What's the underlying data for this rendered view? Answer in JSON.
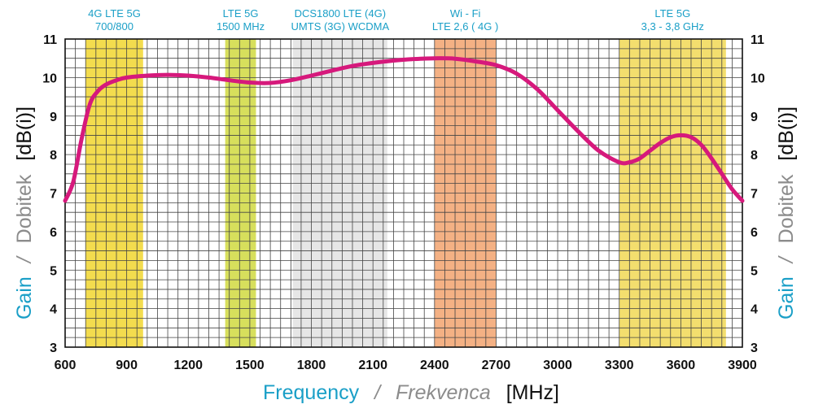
{
  "chart_data": {
    "type": "line",
    "x_axis": {
      "range": [
        600,
        3900
      ],
      "ticks": [
        600,
        900,
        1200,
        1500,
        1800,
        2100,
        2400,
        2700,
        3000,
        3300,
        3600,
        3900
      ],
      "title_main": "Frequency",
      "title_sep": "/",
      "title_alt": "Frekvenca",
      "unit": "[MHz]"
    },
    "y_axis": {
      "range": [
        3,
        11
      ],
      "ticks": [
        3,
        4,
        5,
        6,
        7,
        8,
        9,
        10,
        11
      ],
      "title_main": "Gain",
      "title_sep": "/",
      "title_alt": "Dobitek",
      "unit": "[dB(i)]"
    },
    "grid": true,
    "bands": [
      {
        "from": 700,
        "to": 980,
        "color": "#f3dc4e",
        "label_lines": [
          "4G LTE 5G",
          "700/800"
        ]
      },
      {
        "from": 1380,
        "to": 1530,
        "color": "#d7df5c",
        "label_lines": [
          "LTE 5G",
          "1500 MHz"
        ]
      },
      {
        "from": 1710,
        "to": 2170,
        "color": "#e6e6e6",
        "label_lines": [
          "DCS1800 LTE (4G)",
          "UMTS (3G) WCDMA"
        ]
      },
      {
        "from": 2400,
        "to": 2700,
        "color": "#f4b184",
        "label_lines": [
          "Wi - Fi",
          "LTE 2,6 ( 4G )"
        ]
      },
      {
        "from": 3300,
        "to": 3820,
        "color": "#f3de6e",
        "label_lines": [
          "LTE 5G",
          "3,3 - 3,8 GHz"
        ]
      }
    ],
    "series": [
      {
        "color": "#d6197c",
        "x": [
          600,
          640,
          680,
          720,
          760,
          800,
          850,
          900,
          1000,
          1100,
          1200,
          1300,
          1400,
          1500,
          1600,
          1700,
          1800,
          1900,
          2000,
          2100,
          2200,
          2300,
          2400,
          2500,
          2600,
          2700,
          2800,
          2900,
          3000,
          3100,
          3200,
          3300,
          3350,
          3400,
          3450,
          3500,
          3550,
          3600,
          3650,
          3700,
          3750,
          3800,
          3850,
          3900
        ],
        "y": [
          6.8,
          7.3,
          8.4,
          9.3,
          9.65,
          9.82,
          9.93,
          10.0,
          10.05,
          10.07,
          10.05,
          10.0,
          9.93,
          9.87,
          9.86,
          9.93,
          10.05,
          10.18,
          10.3,
          10.38,
          10.44,
          10.48,
          10.5,
          10.49,
          10.42,
          10.32,
          10.1,
          9.7,
          9.15,
          8.6,
          8.1,
          7.8,
          7.8,
          7.9,
          8.1,
          8.3,
          8.45,
          8.5,
          8.45,
          8.25,
          7.9,
          7.5,
          7.1,
          6.8
        ]
      }
    ]
  }
}
